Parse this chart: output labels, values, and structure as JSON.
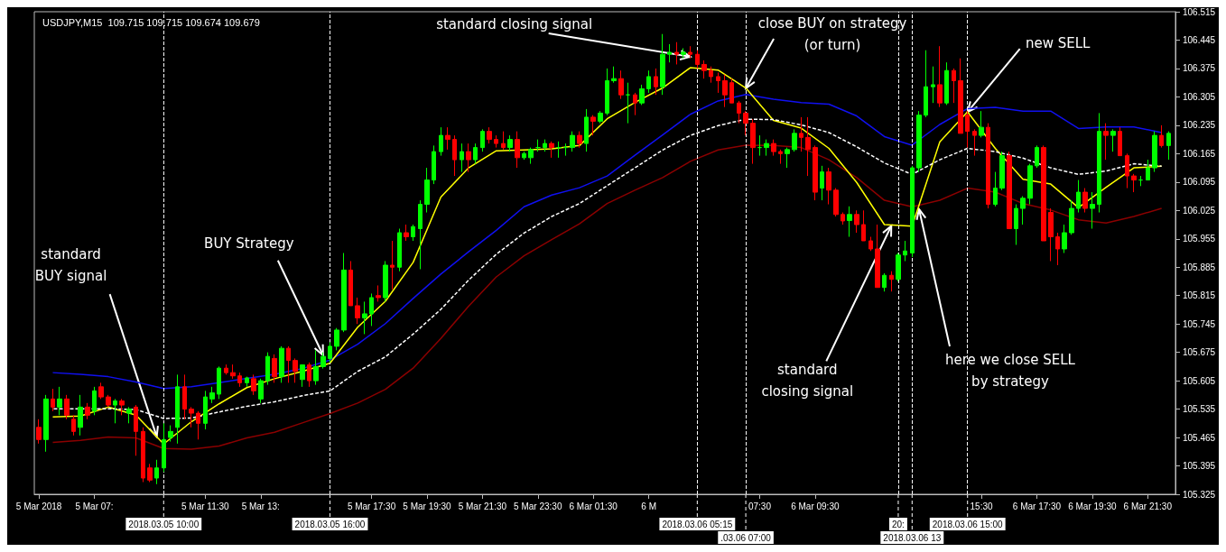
{
  "chart_data": {
    "type": "candlestick",
    "title": "USDJPY,M15  109.715 109.715 109.674 109.679",
    "x": [
      "2018-03-05T05:30",
      "2018-03-05T05:45",
      "2018-03-05T06:00",
      "2018-03-05T06:15",
      "2018-03-05T06:30",
      "2018-03-05T06:45",
      "2018-03-05T07:00",
      "2018-03-05T07:15",
      "2018-03-05T07:30",
      "2018-03-05T07:45",
      "2018-03-05T08:00",
      "2018-03-05T08:15",
      "2018-03-05T08:30",
      "2018-03-05T08:45",
      "2018-03-05T09:00",
      "2018-03-05T09:15",
      "2018-03-05T09:30",
      "2018-03-05T09:45",
      "2018-03-05T10:00",
      "2018-03-05T10:15",
      "2018-03-05T10:30",
      "2018-03-05T10:45",
      "2018-03-05T11:00",
      "2018-03-05T11:15",
      "2018-03-05T11:30",
      "2018-03-05T11:45",
      "2018-03-05T12:00",
      "2018-03-05T12:15",
      "2018-03-05T12:30",
      "2018-03-05T12:45",
      "2018-03-05T13:00",
      "2018-03-05T13:15",
      "2018-03-05T13:30",
      "2018-03-05T13:45",
      "2018-03-05T14:00",
      "2018-03-05T14:15",
      "2018-03-05T14:30",
      "2018-03-05T14:45",
      "2018-03-05T15:00",
      "2018-03-05T15:15",
      "2018-03-05T15:30",
      "2018-03-05T15:45",
      "2018-03-05T16:00",
      "2018-03-05T16:15",
      "2018-03-05T16:30",
      "2018-03-05T16:45",
      "2018-03-05T17:00",
      "2018-03-05T17:15",
      "2018-03-05T17:30",
      "2018-03-05T17:45",
      "2018-03-05T18:00",
      "2018-03-05T18:15",
      "2018-03-05T18:30",
      "2018-03-05T18:45",
      "2018-03-05T19:00",
      "2018-03-05T19:15",
      "2018-03-05T19:30",
      "2018-03-05T19:45",
      "2018-03-05T20:00",
      "2018-03-05T20:15",
      "2018-03-05T20:30",
      "2018-03-05T20:45",
      "2018-03-05T21:00",
      "2018-03-05T21:15",
      "2018-03-05T21:30",
      "2018-03-05T21:45",
      "2018-03-05T22:00",
      "2018-03-05T22:15",
      "2018-03-05T22:30",
      "2018-03-05T22:45",
      "2018-03-05T23:00",
      "2018-03-05T23:15",
      "2018-03-05T23:30",
      "2018-03-05T23:45",
      "2018-03-06T00:00",
      "2018-03-06T00:15",
      "2018-03-06T00:30",
      "2018-03-06T00:45",
      "2018-03-06T01:00",
      "2018-03-06T01:15",
      "2018-03-06T01:30",
      "2018-03-06T01:45",
      "2018-03-06T02:00",
      "2018-03-06T02:15",
      "2018-03-06T02:30",
      "2018-03-06T02:45",
      "2018-03-06T03:00",
      "2018-03-06T03:15",
      "2018-03-06T03:30",
      "2018-03-06T03:45",
      "2018-03-06T04:00",
      "2018-03-06T04:15",
      "2018-03-06T04:30",
      "2018-03-06T04:45",
      "2018-03-06T05:00",
      "2018-03-06T05:15",
      "2018-03-06T05:30",
      "2018-03-06T05:45",
      "2018-03-06T06:00",
      "2018-03-06T06:15",
      "2018-03-06T06:30",
      "2018-03-06T06:45",
      "2018-03-06T07:00",
      "2018-03-06T07:15",
      "2018-03-06T07:30",
      "2018-03-06T07:45",
      "2018-03-06T08:00",
      "2018-03-06T08:15",
      "2018-03-06T08:30",
      "2018-03-06T08:45",
      "2018-03-06T09:00",
      "2018-03-06T09:15",
      "2018-03-06T09:30",
      "2018-03-06T09:45",
      "2018-03-06T10:00",
      "2018-03-06T10:15",
      "2018-03-06T10:30",
      "2018-03-06T10:45",
      "2018-03-06T11:00",
      "2018-03-06T11:15",
      "2018-03-06T11:30",
      "2018-03-06T11:45",
      "2018-03-06T12:00",
      "2018-03-06T12:15",
      "2018-03-06T12:30",
      "2018-03-06T12:45",
      "2018-03-06T13:00",
      "2018-03-06T13:15",
      "2018-03-06T13:30",
      "2018-03-06T13:45",
      "2018-03-06T14:00",
      "2018-03-06T14:15",
      "2018-03-06T14:30",
      "2018-03-06T14:45",
      "2018-03-06T15:00",
      "2018-03-06T15:15",
      "2018-03-06T15:30",
      "2018-03-06T15:45",
      "2018-03-06T16:00",
      "2018-03-06T16:15",
      "2018-03-06T16:30",
      "2018-03-06T16:45",
      "2018-03-06T17:00",
      "2018-03-06T17:15",
      "2018-03-06T17:30",
      "2018-03-06T17:45",
      "2018-03-06T18:00",
      "2018-03-06T18:15",
      "2018-03-06T18:30",
      "2018-03-06T18:45",
      "2018-03-06T19:00",
      "2018-03-06T19:15",
      "2018-03-06T19:30",
      "2018-03-06T19:45",
      "2018-03-06T20:00",
      "2018-03-06T20:15",
      "2018-03-06T20:30",
      "2018-03-06T20:45",
      "2018-03-06T21:00",
      "2018-03-06T21:15",
      "2018-03-06T21:30",
      "2018-03-06T21:45",
      "2018-03-06T22:00",
      "2018-03-06T22:15"
    ],
    "ohlc": [
      [
        105.49,
        105.51,
        105.45,
        105.46
      ],
      [
        105.46,
        105.57,
        105.43,
        105.56
      ],
      [
        105.56,
        105.585,
        105.53,
        105.54
      ],
      [
        105.54,
        105.59,
        105.52,
        105.56
      ],
      [
        105.56,
        105.57,
        105.51,
        105.52
      ],
      [
        105.51,
        105.52,
        105.47,
        105.48
      ],
      [
        105.49,
        105.57,
        105.47,
        105.54
      ],
      [
        105.54,
        105.55,
        105.51,
        105.52
      ],
      [
        105.53,
        105.59,
        105.52,
        105.58
      ],
      [
        105.59,
        105.6,
        105.56,
        105.565
      ],
      [
        105.565,
        105.57,
        105.54,
        105.545
      ],
      [
        105.545,
        105.56,
        105.5,
        105.555
      ],
      [
        105.555,
        105.56,
        105.52,
        105.545
      ],
      [
        105.525,
        105.54,
        105.5,
        105.535
      ],
      [
        105.54,
        105.545,
        105.42,
        105.48
      ],
      [
        105.48,
        105.49,
        105.355,
        105.365
      ],
      [
        105.39,
        105.4,
        105.355,
        105.36
      ],
      [
        105.365,
        105.41,
        105.35,
        105.39
      ],
      [
        105.39,
        105.5,
        105.38,
        105.46
      ],
      [
        105.465,
        105.495,
        105.455,
        105.48
      ],
      [
        105.49,
        105.62,
        105.45,
        105.59
      ],
      [
        105.59,
        105.62,
        105.51,
        105.535
      ],
      [
        105.535,
        105.54,
        105.49,
        105.525
      ],
      [
        105.525,
        105.53,
        105.46,
        105.5
      ],
      [
        105.5,
        105.58,
        105.485,
        105.565
      ],
      [
        105.56,
        105.59,
        105.55,
        105.575
      ],
      [
        105.572,
        105.64,
        105.56,
        105.636
      ],
      [
        105.636,
        105.645,
        105.62,
        105.625
      ],
      [
        105.625,
        105.645,
        105.61,
        105.617
      ],
      [
        105.617,
        105.625,
        105.59,
        105.6
      ],
      [
        105.6,
        105.615,
        105.59,
        105.612
      ],
      [
        105.61,
        105.62,
        105.57,
        105.58
      ],
      [
        105.56,
        105.61,
        105.55,
        105.605
      ],
      [
        105.605,
        105.675,
        105.595,
        105.665
      ],
      [
        105.66,
        105.67,
        105.6,
        105.615
      ],
      [
        105.615,
        105.69,
        105.6,
        105.685
      ],
      [
        105.685,
        105.69,
        105.6,
        105.655
      ],
      [
        105.655,
        105.66,
        105.6,
        105.628
      ],
      [
        105.608,
        105.645,
        105.59,
        105.644
      ],
      [
        105.644,
        105.65,
        105.59,
        105.605
      ],
      [
        105.605,
        105.68,
        105.595,
        105.64
      ],
      [
        105.64,
        105.675,
        105.635,
        105.665
      ],
      [
        105.66,
        105.7,
        105.65,
        105.69
      ],
      [
        105.69,
        105.735,
        105.68,
        105.73
      ],
      [
        105.73,
        105.92,
        105.725,
        105.878
      ],
      [
        105.878,
        105.9,
        105.79,
        105.79
      ],
      [
        105.79,
        105.81,
        105.745,
        105.76
      ],
      [
        105.76,
        105.8,
        105.72,
        105.77
      ],
      [
        105.77,
        105.82,
        105.74,
        105.81
      ],
      [
        105.815,
        105.84,
        105.8,
        105.81
      ],
      [
        105.81,
        105.9,
        105.8,
        105.89
      ],
      [
        105.89,
        105.95,
        105.83,
        105.885
      ],
      [
        105.885,
        105.98,
        105.875,
        105.97
      ],
      [
        105.97,
        105.99,
        105.95,
        105.96
      ],
      [
        105.96,
        105.99,
        105.95,
        105.985
      ],
      [
        105.98,
        106.05,
        105.88,
        106.04
      ],
      [
        106.04,
        106.13,
        106.02,
        106.1
      ],
      [
        106.1,
        106.185,
        106.09,
        106.17
      ],
      [
        106.17,
        106.23,
        106.16,
        106.21
      ],
      [
        106.21,
        106.23,
        106.175,
        106.2
      ],
      [
        106.2,
        106.21,
        106.11,
        106.15
      ],
      [
        106.15,
        106.19,
        106.12,
        106.17
      ],
      [
        106.17,
        106.19,
        106.12,
        106.15
      ],
      [
        106.15,
        106.19,
        106.14,
        106.18
      ],
      [
        106.18,
        106.225,
        106.17,
        106.22
      ],
      [
        106.22,
        106.23,
        106.19,
        106.2
      ],
      [
        106.2,
        106.21,
        106.18,
        106.19
      ],
      [
        106.19,
        106.22,
        106.175,
        106.18
      ],
      [
        106.18,
        106.21,
        106.17,
        106.2
      ],
      [
        106.2,
        106.22,
        106.13,
        106.155
      ],
      [
        106.155,
        106.17,
        106.15,
        106.165
      ],
      [
        106.155,
        106.18,
        106.14,
        106.175
      ],
      [
        106.18,
        106.2,
        106.17,
        106.18
      ],
      [
        106.18,
        106.2,
        106.17,
        106.19
      ],
      [
        106.19,
        106.195,
        106.155,
        106.18
      ],
      [
        106.18,
        106.195,
        106.155,
        106.18
      ],
      [
        106.18,
        106.19,
        106.16,
        106.18
      ],
      [
        106.18,
        106.22,
        106.17,
        106.21
      ],
      [
        106.21,
        106.22,
        106.18,
        106.19
      ],
      [
        106.19,
        106.275,
        106.17,
        106.255
      ],
      [
        106.255,
        106.26,
        106.21,
        106.245
      ],
      [
        106.245,
        106.27,
        106.24,
        106.265
      ],
      [
        106.265,
        106.375,
        106.26,
        106.345
      ],
      [
        106.345,
        106.38,
        106.34,
        106.35
      ],
      [
        106.35,
        106.37,
        106.3,
        106.31
      ],
      [
        106.31,
        106.34,
        106.24,
        106.31
      ],
      [
        106.31,
        106.315,
        106.26,
        106.29
      ],
      [
        106.29,
        106.335,
        106.285,
        106.325
      ],
      [
        106.325,
        106.37,
        106.315,
        106.355
      ],
      [
        106.355,
        106.375,
        106.31,
        106.33
      ],
      [
        106.33,
        106.46,
        106.31,
        106.41
      ],
      [
        106.41,
        106.435,
        106.39,
        106.415
      ],
      [
        106.415,
        106.44,
        106.385,
        106.41
      ],
      [
        106.41,
        106.425,
        106.4,
        106.415
      ],
      [
        106.415,
        106.43,
        106.4,
        106.41
      ],
      [
        106.41,
        106.42,
        106.375,
        106.385
      ],
      [
        106.385,
        106.395,
        106.35,
        106.37
      ],
      [
        106.37,
        106.38,
        106.34,
        106.355
      ],
      [
        106.355,
        106.365,
        106.315,
        106.345
      ],
      [
        106.345,
        106.36,
        106.28,
        106.31
      ],
      [
        106.34,
        106.35,
        106.29,
        106.29
      ],
      [
        106.29,
        106.295,
        106.24,
        106.265
      ],
      [
        106.265,
        106.27,
        106.21,
        106.24
      ],
      [
        106.24,
        106.25,
        106.14,
        106.18
      ],
      [
        106.18,
        106.21,
        106.16,
        106.18
      ],
      [
        106.18,
        106.2,
        106.16,
        106.19
      ],
      [
        106.19,
        106.2,
        106.16,
        106.17
      ],
      [
        106.17,
        106.175,
        106.14,
        106.165
      ],
      [
        106.165,
        106.18,
        106.13,
        106.175
      ],
      [
        106.175,
        106.225,
        106.17,
        106.215
      ],
      [
        106.215,
        106.255,
        106.17,
        106.205
      ],
      [
        106.205,
        106.255,
        106.11,
        106.175
      ],
      [
        106.18,
        106.185,
        106.05,
        106.07
      ],
      [
        106.08,
        106.135,
        106.05,
        106.12
      ],
      [
        106.12,
        106.13,
        106.04,
        106.075
      ],
      [
        106.075,
        106.08,
        106.01,
        106.015
      ],
      [
        106.015,
        106.02,
        105.99,
        105.999
      ],
      [
        106.0,
        106.035,
        105.96,
        106.015
      ],
      [
        106.015,
        106.025,
        105.97,
        105.99
      ],
      [
        105.99,
        106.025,
        105.95,
        105.95
      ],
      [
        105.95,
        105.96,
        105.925,
        105.93
      ],
      [
        105.93,
        105.99,
        105.835,
        105.835
      ],
      [
        105.835,
        105.87,
        105.825,
        105.865
      ],
      [
        105.865,
        105.875,
        105.825,
        105.855
      ],
      [
        105.855,
        105.92,
        105.85,
        105.915
      ],
      [
        105.915,
        105.95,
        105.9,
        105.925
      ],
      [
        105.92,
        106.135,
        105.91,
        106.13
      ],
      [
        106.13,
        106.27,
        106.12,
        106.26
      ],
      [
        106.26,
        106.42,
        106.255,
        106.33
      ],
      [
        106.33,
        106.38,
        106.29,
        106.335
      ],
      [
        106.335,
        106.43,
        106.28,
        106.29
      ],
      [
        106.29,
        106.39,
        106.285,
        106.37
      ],
      [
        106.37,
        106.375,
        106.29,
        106.345
      ],
      [
        106.345,
        106.4,
        106.215,
        106.215
      ],
      [
        106.26,
        106.27,
        106.18,
        106.22
      ],
      [
        106.22,
        106.225,
        106.16,
        106.21
      ],
      [
        106.21,
        106.27,
        106.205,
        106.23
      ],
      [
        106.23,
        106.24,
        106.03,
        106.04
      ],
      [
        106.04,
        106.12,
        106.035,
        106.08
      ],
      [
        106.08,
        106.17,
        106.075,
        106.16
      ],
      [
        106.16,
        106.17,
        105.98,
        105.98
      ],
      [
        105.98,
        106.04,
        105.94,
        106.03
      ],
      [
        106.03,
        106.06,
        105.99,
        106.055
      ],
      [
        106.055,
        106.14,
        106.04,
        106.135
      ],
      [
        106.135,
        106.185,
        106.13,
        106.18
      ],
      [
        106.18,
        106.185,
        105.95,
        105.95
      ],
      [
        106.02,
        106.03,
        105.9,
        105.96
      ],
      [
        105.96,
        105.97,
        105.89,
        105.93
      ],
      [
        105.93,
        105.99,
        105.92,
        105.97
      ],
      [
        105.97,
        106.05,
        105.965,
        106.03
      ],
      [
        106.03,
        106.1,
        106.02,
        106.07
      ],
      [
        106.07,
        106.08,
        106.02,
        106.03
      ],
      [
        106.03,
        106.07,
        105.98,
        106.04
      ],
      [
        106.04,
        106.265,
        106.02,
        106.22
      ],
      [
        106.22,
        106.24,
        106.15,
        106.21
      ],
      [
        106.21,
        106.225,
        106.17,
        106.22
      ],
      [
        106.22,
        106.23,
        106.16,
        106.16
      ],
      [
        106.16,
        106.165,
        106.08,
        106.11
      ],
      [
        106.11,
        106.115,
        106.07,
        106.1
      ],
      [
        106.1,
        106.11,
        106.085,
        106.1
      ],
      [
        106.1,
        106.15,
        106.1,
        106.13
      ],
      [
        106.13,
        106.22,
        106.12,
        106.21
      ],
      [
        106.21,
        106.235,
        106.18,
        106.185
      ],
      [
        106.185,
        106.22,
        106.15,
        106.215
      ]
    ],
    "colors": [
      "#ff0000",
      "#00ff00",
      "#ff0000",
      "#00ff00",
      "#ff0000",
      "#ff0000",
      "#00ff00",
      "#ff0000",
      "#00ff00",
      "#ff0000",
      "#ff0000",
      "#00ff00",
      "#ff0000",
      "#00ff00",
      "#ff0000",
      "#ff0000",
      "#ff0000",
      "#00ff00",
      "#00ff00",
      "#00ff00",
      "#00ff00",
      "#ff0000",
      "#ff0000",
      "#ff0000",
      "#00ff00",
      "#00ff00",
      "#00ff00",
      "#ff0000",
      "#ff0000",
      "#ff0000",
      "#00ff00",
      "#ff0000",
      "#00ff00",
      "#00ff00",
      "#ff0000",
      "#00ff00",
      "#ff0000",
      "#ff0000",
      "#00ff00",
      "#ff0000",
      "#00ff00",
      "#00ff00",
      "#00ff00",
      "#00ff00",
      "#00ff00",
      "#ff0000",
      "#ff0000",
      "#00ff00",
      "#00ff00",
      "#ff0000",
      "#00ff00",
      "#ff0000",
      "#00ff00",
      "#ff0000",
      "#00ff00",
      "#00ff00",
      "#00ff00",
      "#00ff00",
      "#00ff00",
      "#ff0000",
      "#ff0000",
      "#00ff00",
      "#ff0000",
      "#00ff00",
      "#00ff00",
      "#ff0000",
      "#ff0000",
      "#ff0000",
      "#00ff00",
      "#ff0000",
      "#00ff00",
      "#00ff00",
      "#00ff00",
      "#00ff00",
      "#ff0000",
      "#00ff00",
      "#00ff00",
      "#00ff00",
      "#ff0000",
      "#00ff00",
      "#ff0000",
      "#00ff00",
      "#00ff00",
      "#00ff00",
      "#ff0000",
      "#00ff00",
      "#ff0000",
      "#00ff00",
      "#00ff00",
      "#ff0000",
      "#00ff00",
      "#00ff00",
      "#ff0000",
      "#00ff00",
      "#ff0000",
      "#ff0000",
      "#ff0000",
      "#ff0000",
      "#ff0000",
      "#ff0000",
      "#ff0000",
      "#ff0000",
      "#ff0000",
      "#ff0000",
      "#00ff00",
      "#00ff00",
      "#ff0000",
      "#ff0000",
      "#00ff00",
      "#00ff00",
      "#ff0000",
      "#ff0000",
      "#ff0000",
      "#00ff00",
      "#ff0000",
      "#ff0000",
      "#ff0000",
      "#00ff00",
      "#ff0000",
      "#ff0000",
      "#ff0000",
      "#ff0000",
      "#00ff00",
      "#ff0000",
      "#00ff00",
      "#00ff00",
      "#00ff00",
      "#00ff00",
      "#00ff00",
      "#00ff00",
      "#ff0000",
      "#00ff00",
      "#ff0000",
      "#ff0000",
      "#ff0000",
      "#ff0000",
      "#00ff00",
      "#ff0000",
      "#00ff00",
      "#00ff00",
      "#ff0000",
      "#00ff00",
      "#00ff00",
      "#00ff00",
      "#00ff00",
      "#ff0000",
      "#ff0000",
      "#ff0000",
      "#00ff00",
      "#00ff00",
      "#00ff00",
      "#ff0000",
      "#00ff00",
      "#00ff00",
      "#ff0000",
      "#00ff00",
      "#ff0000",
      "#ff0000",
      "#ff0000",
      "#00ff00",
      "#00ff00",
      "#00ff00",
      "#ff0000",
      "#00ff00"
    ],
    "series": [
      {
        "type": "line",
        "color": "#1010f0",
        "line_style": "solid",
        "x": [
          "2018-03-05T06:00",
          "2018-03-05T07:00",
          "2018-03-05T08:00",
          "2018-03-05T09:00",
          "2018-03-05T10:00",
          "2018-03-05T11:00",
          "2018-03-05T12:00",
          "2018-03-05T13:00",
          "2018-03-05T14:00",
          "2018-03-05T15:00",
          "2018-03-05T16:00",
          "2018-03-05T17:00",
          "2018-03-05T18:00",
          "2018-03-05T19:00",
          "2018-03-05T20:00",
          "2018-03-05T21:00",
          "2018-03-05T22:00",
          "2018-03-05T23:00",
          "2018-03-06T00:00",
          "2018-03-06T01:00",
          "2018-03-06T02:00",
          "2018-03-06T03:00",
          "2018-03-06T04:00",
          "2018-03-06T05:00",
          "2018-03-06T06:00",
          "2018-03-06T07:00",
          "2018-03-06T08:00",
          "2018-03-06T09:00",
          "2018-03-06T10:00",
          "2018-03-06T11:00",
          "2018-03-06T12:00",
          "2018-03-06T13:00",
          "2018-03-06T14:00",
          "2018-03-06T15:00",
          "2018-03-06T16:00",
          "2018-03-06T17:00",
          "2018-03-06T18:00",
          "2018-03-06T19:00",
          "2018-03-06T20:00",
          "2018-03-06T21:00",
          "2018-03-06T22:00"
        ],
        "values": [
          105.625,
          105.621,
          105.615,
          105.602,
          105.586,
          105.59,
          105.6,
          105.611,
          105.621,
          105.635,
          105.656,
          105.695,
          105.746,
          105.808,
          105.868,
          105.923,
          105.976,
          106.034,
          106.063,
          106.081,
          106.11,
          106.161,
          106.211,
          106.262,
          106.295,
          106.311,
          106.299,
          106.291,
          106.287,
          106.258,
          106.207,
          106.186,
          106.237,
          106.276,
          106.279,
          106.27,
          106.27,
          106.227,
          106.231,
          106.231,
          106.217
        ]
      },
      {
        "type": "line",
        "color": "#ffffff",
        "line_style": "dashed",
        "x": [
          "2018-03-05T06:00",
          "2018-03-05T07:00",
          "2018-03-05T08:00",
          "2018-03-05T09:00",
          "2018-03-05T10:00",
          "2018-03-05T11:00",
          "2018-03-05T12:00",
          "2018-03-05T13:00",
          "2018-03-05T14:00",
          "2018-03-05T15:00",
          "2018-03-05T16:00",
          "2018-03-05T17:00",
          "2018-03-05T18:00",
          "2018-03-05T19:00",
          "2018-03-05T20:00",
          "2018-03-05T21:00",
          "2018-03-05T22:00",
          "2018-03-05T23:00",
          "2018-03-06T00:00",
          "2018-03-06T01:00",
          "2018-03-06T02:00",
          "2018-03-06T03:00",
          "2018-03-06T04:00",
          "2018-03-06T05:00",
          "2018-03-06T06:00",
          "2018-03-06T07:00",
          "2018-03-06T08:00",
          "2018-03-06T09:00",
          "2018-03-06T10:00",
          "2018-03-06T11:00",
          "2018-03-06T12:00",
          "2018-03-06T13:00",
          "2018-03-06T14:00",
          "2018-03-06T15:00",
          "2018-03-06T16:00",
          "2018-03-06T17:00",
          "2018-03-06T18:00",
          "2018-03-06T19:00",
          "2018-03-06T20:00",
          "2018-03-06T21:00",
          "2018-03-06T22:00"
        ],
        "values": [
          105.536,
          105.536,
          105.536,
          105.534,
          105.512,
          105.513,
          105.528,
          105.542,
          105.553,
          105.568,
          105.58,
          105.628,
          105.664,
          105.72,
          105.781,
          105.853,
          105.917,
          105.969,
          106.01,
          106.042,
          106.086,
          106.13,
          106.174,
          106.21,
          106.234,
          106.25,
          106.249,
          106.236,
          106.217,
          106.182,
          106.142,
          106.114,
          106.15,
          106.178,
          106.17,
          106.154,
          106.13,
          106.114,
          106.122,
          106.14,
          106.134
        ]
      },
      {
        "type": "line",
        "color": "#8b0000",
        "line_style": "solid",
        "x": [
          "2018-03-05T06:00",
          "2018-03-05T07:00",
          "2018-03-05T08:00",
          "2018-03-05T09:00",
          "2018-03-05T10:00",
          "2018-03-05T11:00",
          "2018-03-05T12:00",
          "2018-03-05T13:00",
          "2018-03-05T14:00",
          "2018-03-05T15:00",
          "2018-03-05T16:00",
          "2018-03-05T17:00",
          "2018-03-05T18:00",
          "2018-03-05T19:00",
          "2018-03-05T20:00",
          "2018-03-05T21:00",
          "2018-03-05T22:00",
          "2018-03-05T23:00",
          "2018-03-06T00:00",
          "2018-03-06T01:00",
          "2018-03-06T02:00",
          "2018-03-06T03:00",
          "2018-03-06T04:00",
          "2018-03-06T05:00",
          "2018-03-06T06:00",
          "2018-03-06T07:00",
          "2018-03-06T08:00",
          "2018-03-06T09:00",
          "2018-03-06T10:00",
          "2018-03-06T11:00",
          "2018-03-06T12:00",
          "2018-03-06T13:00",
          "2018-03-06T14:00",
          "2018-03-06T15:00",
          "2018-03-06T16:00",
          "2018-03-06T17:00",
          "2018-03-06T18:00",
          "2018-03-06T19:00",
          "2018-03-06T20:00",
          "2018-03-06T21:00",
          "2018-03-06T22:00"
        ],
        "values": [
          105.453,
          105.458,
          105.466,
          105.464,
          105.438,
          105.436,
          105.444,
          105.464,
          105.478,
          105.501,
          105.524,
          105.55,
          105.584,
          105.636,
          105.709,
          105.789,
          105.861,
          105.913,
          105.953,
          105.992,
          106.042,
          106.075,
          106.106,
          106.146,
          106.174,
          106.186,
          106.185,
          106.18,
          106.15,
          106.106,
          106.05,
          106.034,
          106.05,
          106.08,
          106.07,
          106.042,
          106.026,
          106.002,
          105.994,
          106.01,
          106.03
        ]
      },
      {
        "type": "line",
        "color": "#ffff00",
        "line_style": "solid",
        "x": [
          "2018-03-05T06:00",
          "2018-03-05T07:00",
          "2018-03-05T08:00",
          "2018-03-05T09:00",
          "2018-03-05T10:00",
          "2018-03-05T11:00",
          "2018-03-05T12:00",
          "2018-03-05T13:00",
          "2018-03-05T14:00",
          "2018-03-05T15:00",
          "2018-03-05T16:00",
          "2018-03-05T17:00",
          "2018-03-05T18:00",
          "2018-03-05T19:00",
          "2018-03-05T20:00",
          "2018-03-05T21:00",
          "2018-03-05T22:00",
          "2018-03-05T23:00",
          "2018-03-06T00:00",
          "2018-03-06T01:00",
          "2018-03-06T02:00",
          "2018-03-06T03:00",
          "2018-03-06T04:00",
          "2018-03-06T05:00",
          "2018-03-06T06:00",
          "2018-03-06T07:00",
          "2018-03-06T08:00",
          "2018-03-06T09:00",
          "2018-03-06T10:00",
          "2018-03-06T11:00",
          "2018-03-06T12:00",
          "2018-03-06T13:00",
          "2018-03-06T14:00",
          "2018-03-06T15:00",
          "2018-03-06T16:00",
          "2018-03-06T17:00",
          "2018-03-06T18:00",
          "2018-03-06T19:00",
          "2018-03-06T20:00",
          "2018-03-06T21:00",
          "2018-03-06T22:00"
        ],
        "values": [
          105.516,
          105.518,
          105.54,
          105.52,
          105.449,
          105.504,
          105.548,
          105.588,
          105.61,
          105.628,
          105.648,
          105.737,
          105.801,
          105.897,
          106.058,
          106.13,
          106.172,
          106.174,
          106.177,
          106.185,
          106.251,
          106.291,
          106.327,
          106.377,
          106.371,
          106.327,
          106.247,
          106.228,
          106.178,
          106.094,
          105.99,
          105.986,
          106.194,
          106.268,
          106.178,
          106.102,
          106.09,
          106.032,
          106.082,
          106.13,
          106.134
        ]
      }
    ],
    "xlim": [
      "2018-03-05T05:20",
      "2018-03-06T22:30"
    ],
    "xticks": [
      {
        "value": "2018-03-05T05:30",
        "label": "5 Mar 2018"
      },
      {
        "value": "2018-03-05T07:30",
        "label": "5 Mar 07:"
      },
      {
        "value": "2018-03-05T11:30",
        "label": "5 Mar 11:30"
      },
      {
        "value": "2018-03-05T13:30",
        "label": "5 Mar 13:"
      },
      {
        "value": "2018-03-05T17:30",
        "label": "5 Mar 17:30"
      },
      {
        "value": "2018-03-05T19:30",
        "label": "5 Mar 19:30"
      },
      {
        "value": "2018-03-05T21:30",
        "label": "5 Mar 21:30"
      },
      {
        "value": "2018-03-05T23:30",
        "label": "5 Mar 23:30"
      },
      {
        "value": "2018-03-06T01:30",
        "label": "6 Mar 01:30"
      },
      {
        "value": "2018-03-06T03:30",
        "label": "6 M"
      },
      {
        "value": "2018-03-06T07:30",
        "label": "07:30"
      },
      {
        "value": "2018-03-06T09:30",
        "label": "6 Mar 09:30"
      },
      {
        "value": "2018-03-06T15:30",
        "label": "15:30"
      },
      {
        "value": "2018-03-06T17:30",
        "label": "6 Mar 17:30"
      },
      {
        "value": "2018-03-06T19:30",
        "label": "6 Mar 19:30"
      },
      {
        "value": "2018-03-06T21:30",
        "label": "6 Mar 21:30"
      }
    ],
    "ylim": [
      105.325,
      106.515
    ],
    "yticks": [
      105.325,
      105.395,
      105.465,
      105.535,
      105.605,
      105.675,
      105.745,
      105.815,
      105.885,
      105.955,
      106.025,
      106.095,
      106.165,
      106.235,
      106.305,
      106.375,
      106.445,
      106.515
    ],
    "ref_lines": [
      {
        "axis": "x",
        "value": "2018-03-05T10:00",
        "label": "2018.03.05 10:00",
        "color": "#ffffff",
        "line_style": "dashed"
      },
      {
        "axis": "x",
        "value": "2018-03-05T16:00",
        "label": "2018.03.05 16:00",
        "color": "#ffffff",
        "line_style": "dashed"
      },
      {
        "axis": "x",
        "value": "2018-03-06T05:15",
        "label": "2018.03.06 05:15",
        "color": "#ffffff",
        "line_style": "dashed"
      },
      {
        "axis": "x",
        "value": "2018-03-06T07:00",
        "label": ".03.06 07:00",
        "color": "#ffffff",
        "line_style": "dashed"
      },
      {
        "axis": "x",
        "value": "2018-03-06T12:30",
        "label": "20:",
        "color": "#ffffff",
        "line_style": "dashed"
      },
      {
        "axis": "x",
        "value": "2018-03-06T13:00",
        "label": "2018.03.06 13",
        "color": "#ffffff",
        "line_style": "dashed"
      },
      {
        "axis": "x",
        "value": "2018-03-06T15:00",
        "label": "2018.03.06 15:00",
        "color": "#ffffff",
        "line_style": "dashed"
      }
    ],
    "annotations": [
      {
        "text": "standard\nBUY signal",
        "x": "2018-03-05T09:45",
        "y": 105.467
      },
      {
        "text": "BUY Strategy",
        "x": "2018-03-05T15:45",
        "y": 105.668
      },
      {
        "text": "standard closing signal",
        "x": "2018-03-06T05:00",
        "y": 106.404
      },
      {
        "text": "close BUY on strategy\n(or turn)",
        "x": "2018-03-06T07:00",
        "y": 106.326
      },
      {
        "text": "new SELL",
        "x": "2018-03-06T15:00",
        "y": 106.268
      },
      {
        "text": "standard\nclosing signal",
        "x": "2018-03-06T12:15",
        "y": 105.987
      },
      {
        "text": "here we close SELL\nby strategy",
        "x": "2018-03-06T13:15",
        "y": 106.028
      }
    ],
    "marker": "none"
  }
}
